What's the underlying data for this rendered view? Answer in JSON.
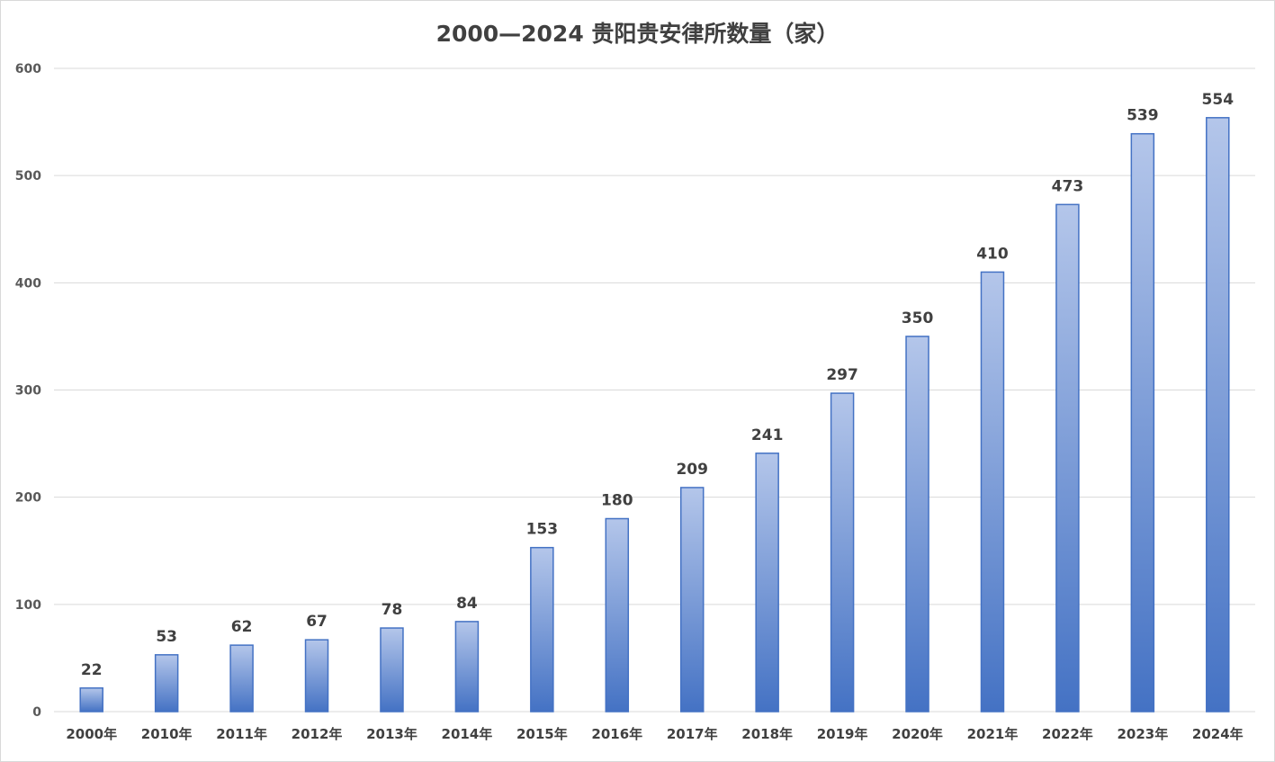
{
  "chart_data": {
    "type": "bar",
    "title": "2000—2024 贵阳贵安律所数量（家）",
    "xlabel": "",
    "ylabel": "",
    "categories": [
      "2000年",
      "2010年",
      "2011年",
      "2012年",
      "2013年",
      "2014年",
      "2015年",
      "2016年",
      "2017年",
      "2018年",
      "2019年",
      "2020年",
      "2021年",
      "2022年",
      "2023年",
      "2024年"
    ],
    "values": [
      22,
      53,
      62,
      67,
      78,
      84,
      153,
      180,
      209,
      241,
      297,
      350,
      410,
      473,
      539,
      554
    ],
    "ylim": [
      0,
      600
    ],
    "yticks": [
      0,
      100,
      200,
      300,
      400,
      500,
      600
    ],
    "grid": true,
    "legend": "none",
    "colors": {
      "bar_top": "#b4c6ea",
      "bar_bottom": "#4472c4",
      "bar_border": "#4472c4",
      "grid": "#d9d9d9"
    }
  }
}
